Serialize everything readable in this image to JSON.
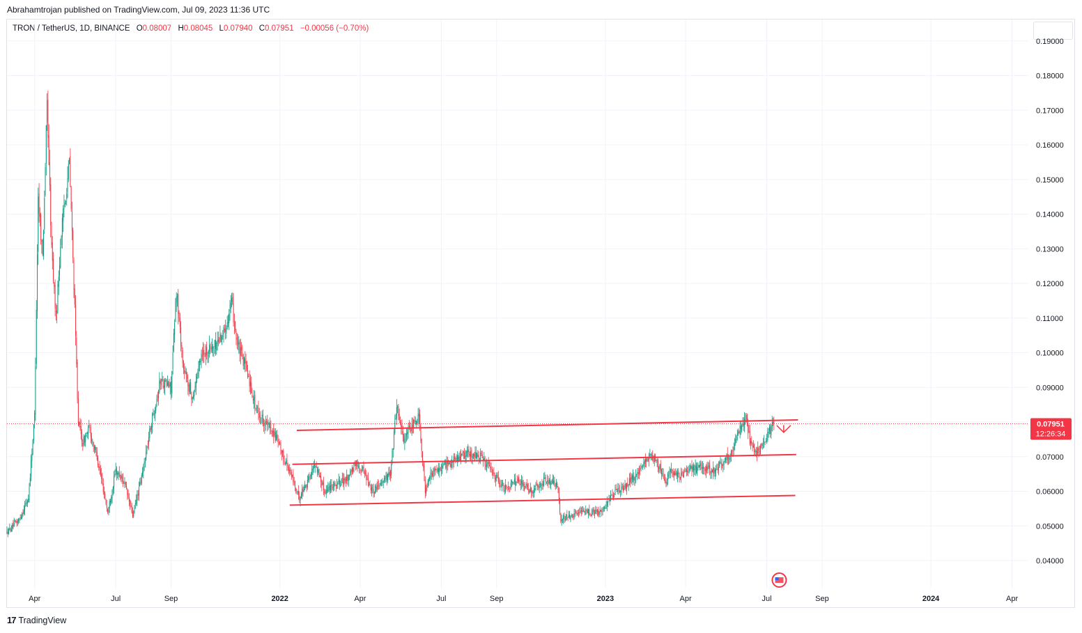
{
  "publisher": "Abrahamtrojan published on TradingView.com, Jul 09, 2023 11:36 UTC",
  "footer": {
    "logo_icon": "tradingview-logo-icon",
    "brand": "TradingView",
    "logo_glyph": "17"
  },
  "legend": {
    "symbol": "TRON / TetherUS, 1D, BINANCE",
    "o_label": "O",
    "o": "0.08007",
    "h_label": "H",
    "h": "0.08045",
    "l_label": "L",
    "l": "0.07940",
    "c_label": "C",
    "c": "0.07951",
    "change": "−0.00056 (−0.70%)"
  },
  "price_tag": {
    "price": "0.07951",
    "countdown": "12:26:34"
  },
  "colors": {
    "up": "#089981",
    "down": "#f23645",
    "line": "#f23645",
    "grid": "#f0f3fa",
    "text": "#131722",
    "axis": "#131722"
  },
  "chart_data": {
    "type": "candlestick",
    "title": "TRON / TetherUS, 1D, BINANCE",
    "ylim": [
      0.034,
      0.196
    ],
    "y_ticks": [
      "0.04000",
      "0.05000",
      "0.06000",
      "0.07000",
      "0.08000",
      "0.09000",
      "0.10000",
      "0.11000",
      "0.12000",
      "0.13000",
      "0.14000",
      "0.15000",
      "0.16000",
      "0.17000",
      "0.18000",
      "0.19000"
    ],
    "x_ticks": [
      {
        "label": "Apr",
        "date": "2021-04-01",
        "bold": false
      },
      {
        "label": "Jul",
        "date": "2021-07-01",
        "bold": false
      },
      {
        "label": "Sep",
        "date": "2021-09-01",
        "bold": false
      },
      {
        "label": "2022",
        "date": "2022-01-01",
        "bold": true
      },
      {
        "label": "Apr",
        "date": "2022-04-01",
        "bold": false
      },
      {
        "label": "Jul",
        "date": "2022-07-01",
        "bold": false
      },
      {
        "label": "Sep",
        "date": "2022-09-01",
        "bold": false
      },
      {
        "label": "2023",
        "date": "2023-01-01",
        "bold": true
      },
      {
        "label": "Apr",
        "date": "2023-04-01",
        "bold": false
      },
      {
        "label": "Jul",
        "date": "2023-07-01",
        "bold": false
      },
      {
        "label": "Sep",
        "date": "2023-09-01",
        "bold": false
      },
      {
        "label": "2024",
        "date": "2024-01-01",
        "bold": true
      },
      {
        "label": "Apr",
        "date": "2024-04-01",
        "bold": false
      }
    ],
    "price_path": [
      [
        "2021-03-01",
        0.048
      ],
      [
        "2021-03-15",
        0.052
      ],
      [
        "2021-03-25",
        0.058
      ],
      [
        "2021-04-01",
        0.082
      ],
      [
        "2021-04-05",
        0.145
      ],
      [
        "2021-04-10",
        0.128
      ],
      [
        "2021-04-15",
        0.172
      ],
      [
        "2021-04-20",
        0.13
      ],
      [
        "2021-04-25",
        0.11
      ],
      [
        "2021-05-01",
        0.135
      ],
      [
        "2021-05-10",
        0.155
      ],
      [
        "2021-05-15",
        0.12
      ],
      [
        "2021-05-20",
        0.08
      ],
      [
        "2021-05-25",
        0.074
      ],
      [
        "2021-06-01",
        0.078
      ],
      [
        "2021-06-10",
        0.07
      ],
      [
        "2021-06-22",
        0.054
      ],
      [
        "2021-07-01",
        0.066
      ],
      [
        "2021-07-10",
        0.063
      ],
      [
        "2021-07-20",
        0.053
      ],
      [
        "2021-07-30",
        0.064
      ],
      [
        "2021-08-10",
        0.08
      ],
      [
        "2021-08-20",
        0.092
      ],
      [
        "2021-09-01",
        0.09
      ],
      [
        "2021-09-07",
        0.118
      ],
      [
        "2021-09-15",
        0.095
      ],
      [
        "2021-09-25",
        0.087
      ],
      [
        "2021-10-05",
        0.1
      ],
      [
        "2021-10-20",
        0.102
      ],
      [
        "2021-10-30",
        0.106
      ],
      [
        "2021-11-08",
        0.114
      ],
      [
        "2021-11-15",
        0.102
      ],
      [
        "2021-11-25",
        0.095
      ],
      [
        "2021-12-05",
        0.084
      ],
      [
        "2021-12-15",
        0.08
      ],
      [
        "2021-12-25",
        0.077
      ],
      [
        "2022-01-05",
        0.07
      ],
      [
        "2022-01-15",
        0.064
      ],
      [
        "2022-01-22",
        0.058
      ],
      [
        "2022-02-01",
        0.063
      ],
      [
        "2022-02-10",
        0.068
      ],
      [
        "2022-02-20",
        0.06
      ],
      [
        "2022-03-01",
        0.062
      ],
      [
        "2022-03-15",
        0.063
      ],
      [
        "2022-03-28",
        0.068
      ],
      [
        "2022-04-05",
        0.066
      ],
      [
        "2022-04-15",
        0.06
      ],
      [
        "2022-04-25",
        0.063
      ],
      [
        "2022-05-05",
        0.065
      ],
      [
        "2022-05-12",
        0.085
      ],
      [
        "2022-05-20",
        0.075
      ],
      [
        "2022-05-30",
        0.079
      ],
      [
        "2022-06-06",
        0.082
      ],
      [
        "2022-06-13",
        0.06
      ],
      [
        "2022-06-20",
        0.065
      ],
      [
        "2022-07-01",
        0.067
      ],
      [
        "2022-07-15",
        0.069
      ],
      [
        "2022-08-01",
        0.071
      ],
      [
        "2022-08-15",
        0.07
      ],
      [
        "2022-08-25",
        0.066
      ],
      [
        "2022-09-10",
        0.061
      ],
      [
        "2022-09-25",
        0.063
      ],
      [
        "2022-10-10",
        0.06
      ],
      [
        "2022-10-25",
        0.063
      ],
      [
        "2022-11-08",
        0.062
      ],
      [
        "2022-11-12",
        0.052
      ],
      [
        "2022-11-25",
        0.053
      ],
      [
        "2022-12-10",
        0.054
      ],
      [
        "2022-12-25",
        0.054
      ],
      [
        "2023-01-10",
        0.059
      ],
      [
        "2023-01-25",
        0.062
      ],
      [
        "2023-02-10",
        0.066
      ],
      [
        "2023-02-20",
        0.071
      ],
      [
        "2023-03-01",
        0.068
      ],
      [
        "2023-03-10",
        0.063
      ],
      [
        "2023-03-15",
        0.066
      ],
      [
        "2023-03-25",
        0.064
      ],
      [
        "2023-04-05",
        0.066
      ],
      [
        "2023-04-20",
        0.067
      ],
      [
        "2023-05-01",
        0.066
      ],
      [
        "2023-05-15",
        0.069
      ],
      [
        "2023-05-25",
        0.072
      ],
      [
        "2023-06-01",
        0.079
      ],
      [
        "2023-06-08",
        0.081
      ],
      [
        "2023-06-12",
        0.074
      ],
      [
        "2023-06-18",
        0.071
      ],
      [
        "2023-06-25",
        0.073
      ],
      [
        "2023-07-03",
        0.077
      ],
      [
        "2023-07-09",
        0.0795
      ]
    ],
    "trend_lines": [
      {
        "name": "upper-channel-line",
        "start": [
          "2022-01-20",
          0.0776
        ],
        "end": [
          "2023-08-05",
          0.0806
        ]
      },
      {
        "name": "middle-channel-line",
        "start": [
          "2022-01-15",
          0.0678
        ],
        "end": [
          "2023-08-03",
          0.0706
        ]
      },
      {
        "name": "lower-channel-line",
        "start": [
          "2022-01-12",
          0.056
        ],
        "end": [
          "2023-08-02",
          0.0588
        ]
      }
    ],
    "current_price": 0.07951,
    "projection_arrow": {
      "date": "2023-07-20",
      "from": 0.0791,
      "to": 0.077
    }
  }
}
